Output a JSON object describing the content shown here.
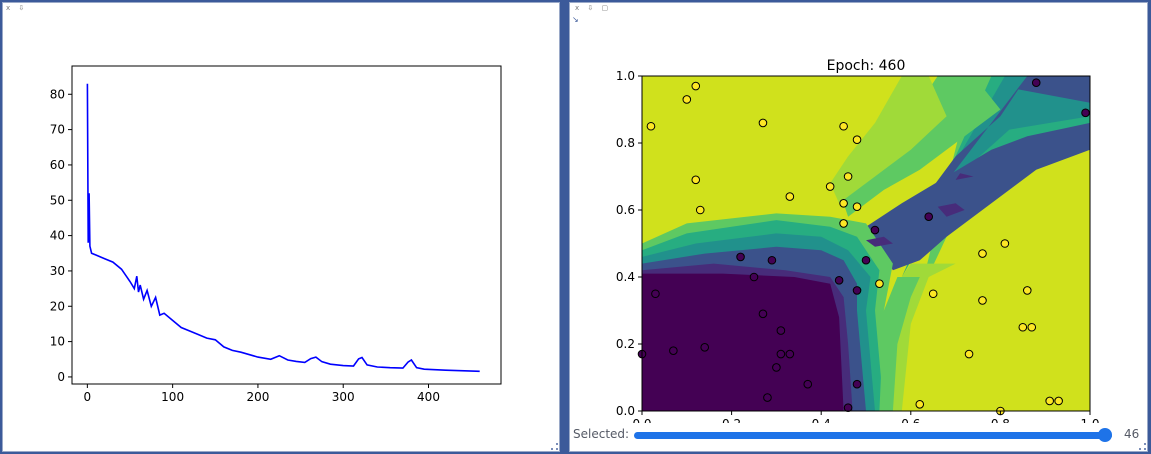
{
  "left_panel": {
    "controls": "x ⇩",
    "chart_data": {
      "type": "line",
      "title": "",
      "xlabel": "",
      "ylabel": "",
      "xlim": [
        -18,
        485
      ],
      "ylim": [
        -2,
        88
      ],
      "xticks": [
        0,
        100,
        200,
        300,
        400
      ],
      "yticks": [
        0,
        10,
        20,
        30,
        40,
        50,
        60,
        70,
        80
      ],
      "grid": false,
      "series": [
        {
          "color": "#0000ff",
          "x": [
            0,
            1,
            2,
            3,
            5,
            10,
            20,
            30,
            40,
            50,
            55,
            58,
            60,
            62,
            66,
            70,
            75,
            80,
            85,
            90,
            100,
            110,
            120,
            130,
            140,
            150,
            160,
            170,
            180,
            200,
            215,
            225,
            235,
            245,
            255,
            262,
            268,
            275,
            285,
            300,
            312,
            318,
            322,
            328,
            340,
            355,
            370,
            376,
            380,
            386,
            395,
            420,
            460
          ],
          "y": [
            83,
            38,
            52,
            37,
            35,
            34.5,
            33.5,
            32.5,
            30.5,
            27,
            25,
            28.5,
            24,
            26,
            22,
            24.5,
            20,
            22.5,
            17.5,
            18,
            16,
            14,
            13,
            12,
            11,
            10.5,
            8.5,
            7.5,
            7,
            5.6,
            5,
            6,
            4.8,
            4.4,
            4.1,
            5.2,
            5.6,
            4.3,
            3.6,
            3.2,
            3.1,
            5.1,
            5.5,
            3.4,
            2.8,
            2.6,
            2.5,
            4.2,
            4.8,
            2.6,
            2.2,
            1.9,
            1.6
          ]
        }
      ]
    }
  },
  "right_panel": {
    "controls": "x ⇩ ▢",
    "arrow_glyph": "↘",
    "chart_data": {
      "type": "scatter",
      "title": "Epoch: 460",
      "xlabel": "",
      "ylabel": "",
      "xlim": [
        0.0,
        1.0
      ],
      "ylim": [
        0.0,
        1.0
      ],
      "xticks": [
        "0.0",
        "0.2",
        "0.4",
        "0.6",
        "0.8",
        "1.0"
      ],
      "yticks": [
        "0.0",
        "0.2",
        "0.4",
        "0.6",
        "0.8",
        "1.0"
      ],
      "grid": false,
      "class_colors": {
        "0": "#440154",
        "1": "#fde725"
      },
      "contour_levels": [
        "#440154",
        "#472c7a",
        "#3b528b",
        "#21918c",
        "#27ad81",
        "#5ec962",
        "#a0da39",
        "#d0e11c"
      ],
      "points": [
        {
          "x": 0.02,
          "y": 0.85,
          "c": 1
        },
        {
          "x": 0.1,
          "y": 0.93,
          "c": 1
        },
        {
          "x": 0.12,
          "y": 0.97,
          "c": 1
        },
        {
          "x": 0.27,
          "y": 0.86,
          "c": 1
        },
        {
          "x": 0.45,
          "y": 0.85,
          "c": 1
        },
        {
          "x": 0.48,
          "y": 0.81,
          "c": 1
        },
        {
          "x": 0.12,
          "y": 0.69,
          "c": 1
        },
        {
          "x": 0.33,
          "y": 0.64,
          "c": 1
        },
        {
          "x": 0.42,
          "y": 0.67,
          "c": 1
        },
        {
          "x": 0.46,
          "y": 0.7,
          "c": 1
        },
        {
          "x": 0.45,
          "y": 0.62,
          "c": 1
        },
        {
          "x": 0.48,
          "y": 0.61,
          "c": 1
        },
        {
          "x": 0.13,
          "y": 0.6,
          "c": 1
        },
        {
          "x": 0.45,
          "y": 0.56,
          "c": 1
        },
        {
          "x": 0.53,
          "y": 0.38,
          "c": 1
        },
        {
          "x": 0.65,
          "y": 0.35,
          "c": 1
        },
        {
          "x": 0.76,
          "y": 0.47,
          "c": 1
        },
        {
          "x": 0.81,
          "y": 0.5,
          "c": 1
        },
        {
          "x": 0.76,
          "y": 0.33,
          "c": 1
        },
        {
          "x": 0.86,
          "y": 0.36,
          "c": 1
        },
        {
          "x": 0.85,
          "y": 0.25,
          "c": 1
        },
        {
          "x": 0.87,
          "y": 0.25,
          "c": 1
        },
        {
          "x": 0.73,
          "y": 0.17,
          "c": 1
        },
        {
          "x": 0.62,
          "y": 0.02,
          "c": 1
        },
        {
          "x": 0.8,
          "y": 0.0,
          "c": 1
        },
        {
          "x": 0.91,
          "y": 0.03,
          "c": 1
        },
        {
          "x": 0.93,
          "y": 0.03,
          "c": 1
        },
        {
          "x": 0.88,
          "y": 0.98,
          "c": 0
        },
        {
          "x": 0.99,
          "y": 0.89,
          "c": 0
        },
        {
          "x": 0.64,
          "y": 0.58,
          "c": 0
        },
        {
          "x": 0.52,
          "y": 0.54,
          "c": 0
        },
        {
          "x": 0.5,
          "y": 0.45,
          "c": 0
        },
        {
          "x": 0.22,
          "y": 0.46,
          "c": 0
        },
        {
          "x": 0.29,
          "y": 0.45,
          "c": 0
        },
        {
          "x": 0.25,
          "y": 0.4,
          "c": 0
        },
        {
          "x": 0.44,
          "y": 0.39,
          "c": 0
        },
        {
          "x": 0.48,
          "y": 0.36,
          "c": 0
        },
        {
          "x": 0.03,
          "y": 0.35,
          "c": 0
        },
        {
          "x": 0.27,
          "y": 0.29,
          "c": 0
        },
        {
          "x": 0.31,
          "y": 0.24,
          "c": 0
        },
        {
          "x": 0.14,
          "y": 0.19,
          "c": 0
        },
        {
          "x": 0.07,
          "y": 0.18,
          "c": 0
        },
        {
          "x": 0.0,
          "y": 0.17,
          "c": 0
        },
        {
          "x": 0.31,
          "y": 0.17,
          "c": 0
        },
        {
          "x": 0.33,
          "y": 0.17,
          "c": 0
        },
        {
          "x": 0.3,
          "y": 0.13,
          "c": 0
        },
        {
          "x": 0.37,
          "y": 0.08,
          "c": 0
        },
        {
          "x": 0.48,
          "y": 0.08,
          "c": 0
        },
        {
          "x": 0.28,
          "y": 0.04,
          "c": 0
        },
        {
          "x": 0.46,
          "y": 0.01,
          "c": 0
        }
      ]
    },
    "slider": {
      "label": "Selected:",
      "value": "46",
      "fraction": 1.0
    }
  }
}
